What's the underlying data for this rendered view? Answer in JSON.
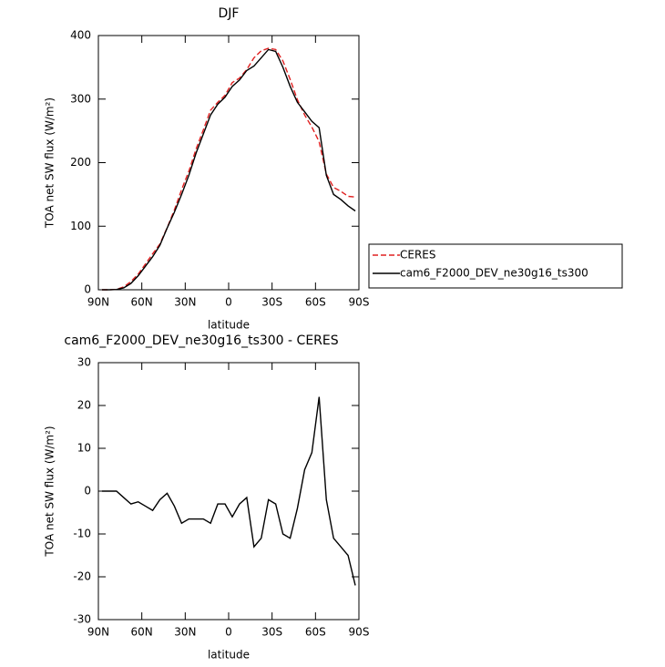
{
  "chart_data": [
    {
      "type": "line",
      "title": "DJF",
      "xlabel": "latitude",
      "ylabel": "TOA net SW flux (W/m²)",
      "x": [
        87.5,
        82.5,
        77.5,
        72.5,
        67.5,
        62.5,
        57.5,
        52.5,
        47.5,
        42.5,
        37.5,
        32.5,
        27.5,
        22.5,
        17.5,
        12.5,
        7.5,
        2.5,
        -2.5,
        -7.5,
        -12.5,
        -17.5,
        -22.5,
        -27.5,
        -32.5,
        -37.5,
        -42.5,
        -47.5,
        -52.5,
        -57.5,
        -62.5,
        -67.5,
        -72.5,
        -77.5,
        -82.5,
        -87.5
      ],
      "series": [
        {
          "name": "CERES",
          "color": "#e02020",
          "dash": true,
          "values": [
            0,
            0,
            0.5,
            4.5,
            13,
            24.5,
            40.5,
            56.5,
            72,
            97.5,
            125.5,
            157.5,
            186.5,
            221.5,
            251.5,
            282.5,
            295,
            306,
            326,
            333,
            346.5,
            365,
            376,
            380,
            378,
            360,
            331,
            299,
            275,
            256,
            233,
            182,
            161,
            155,
            147,
            146
          ]
        },
        {
          "name": "cam6_F2000_DEV_ne30g16_ts300",
          "color": "#000000",
          "dash": false,
          "values": [
            0,
            0,
            0.5,
            3,
            10,
            22,
            37,
            52,
            70,
            97,
            122,
            150,
            180,
            215,
            245,
            275,
            292,
            303,
            320,
            330,
            345,
            352,
            365,
            378,
            375,
            350,
            320,
            295,
            280,
            265,
            255,
            180,
            150,
            142,
            132,
            124
          ]
        }
      ],
      "xlim": [
        90,
        -90
      ],
      "xticks": [
        {
          "value": 90,
          "label": "90N"
        },
        {
          "value": 60,
          "label": "60N"
        },
        {
          "value": 30,
          "label": "30N"
        },
        0,
        {
          "value": -30,
          "label": "30S"
        },
        {
          "value": -60,
          "label": "60S"
        },
        {
          "value": -90,
          "label": "90S"
        }
      ],
      "ylim": [
        0,
        400
      ],
      "yticks": [
        0,
        100,
        200,
        300,
        400
      ],
      "legend": "outside right"
    },
    {
      "type": "line",
      "title": "cam6_F2000_DEV_ne30g16_ts300 - CERES",
      "xlabel": "latitude",
      "ylabel": "TOA net SW flux (W/m²)",
      "x": [
        87.5,
        82.5,
        77.5,
        72.5,
        67.5,
        62.5,
        57.5,
        52.5,
        47.5,
        42.5,
        37.5,
        32.5,
        27.5,
        22.5,
        17.5,
        12.5,
        7.5,
        2.5,
        -2.5,
        -7.5,
        -12.5,
        -17.5,
        -22.5,
        -27.5,
        -32.5,
        -37.5,
        -42.5,
        -47.5,
        -52.5,
        -57.5,
        -62.5,
        -67.5,
        -72.5,
        -77.5,
        -82.5,
        -87.5
      ],
      "series": [
        {
          "color": "#000000",
          "dash": false,
          "values": [
            0,
            0,
            0,
            -1.5,
            -3,
            -2.5,
            -3.5,
            -4.5,
            -2,
            -0.5,
            -3.5,
            -7.5,
            -6.5,
            -6.5,
            -6.5,
            -7.5,
            -3,
            -3,
            -6,
            -3,
            -1.5,
            -13,
            -11,
            -2,
            -3,
            -10,
            -11,
            -4,
            5,
            9,
            22,
            -2,
            -11,
            -13,
            -15,
            -22
          ]
        }
      ],
      "xlim": [
        90,
        -90
      ],
      "xticks": [
        {
          "value": 90,
          "label": "90N"
        },
        {
          "value": 60,
          "label": "60N"
        },
        {
          "value": 30,
          "label": "30N"
        },
        0,
        {
          "value": -30,
          "label": "30S"
        },
        {
          "value": -60,
          "label": "60S"
        },
        {
          "value": -90,
          "label": "90S"
        }
      ],
      "ylim": [
        -30,
        30
      ],
      "yticks": [
        -30,
        -20,
        -10,
        0,
        10,
        20,
        30
      ]
    }
  ]
}
